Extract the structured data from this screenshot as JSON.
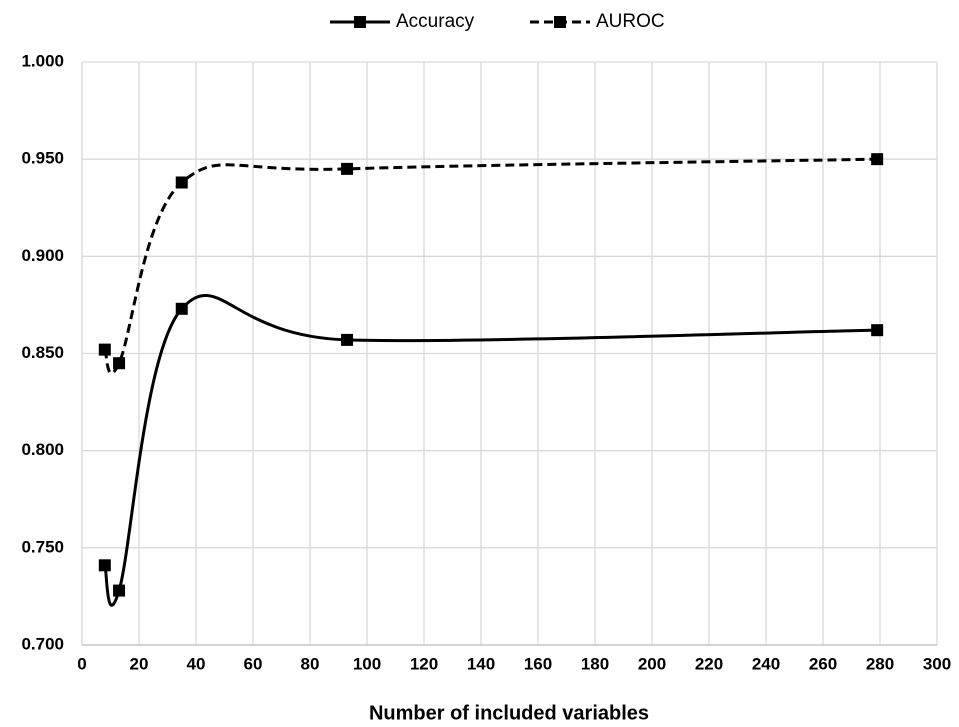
{
  "chart_data": {
    "type": "line",
    "x_label": "Number of included variables",
    "x": [
      8,
      13,
      35,
      93,
      279
    ],
    "series": [
      {
        "name": "Accuracy",
        "color": "#000000",
        "line_style": "solid",
        "values": [
          0.741,
          0.728,
          0.873,
          0.857,
          0.862
        ]
      },
      {
        "name": "AUROC",
        "color": "#000000",
        "line_style": "dashed",
        "values": [
          0.852,
          0.845,
          0.938,
          0.945,
          0.95
        ]
      }
    ],
    "xlim": [
      0,
      300
    ],
    "xticks": [
      0,
      20,
      40,
      60,
      80,
      100,
      120,
      140,
      160,
      180,
      200,
      220,
      240,
      260,
      280,
      300
    ],
    "ylim": [
      0.7,
      1.0
    ],
    "yticks": [
      {
        "value": 0.7,
        "label": "0.700"
      },
      {
        "value": 0.75,
        "label": "0.750"
      },
      {
        "value": 0.8,
        "label": "0.800"
      },
      {
        "value": 0.85,
        "label": "0.850"
      },
      {
        "value": 0.9,
        "label": "0.900"
      },
      {
        "value": 0.95,
        "label": "0.950"
      },
      {
        "value": 1.0,
        "label": "1.000"
      }
    ],
    "grid": true,
    "smooth": true,
    "legend": "top"
  }
}
